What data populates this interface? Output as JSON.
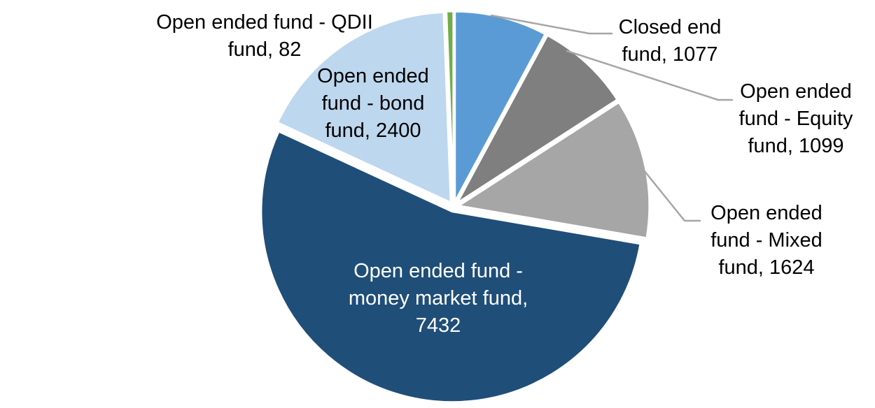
{
  "chart_data": {
    "type": "pie",
    "legend": "none",
    "background": "#FFFFFF",
    "start_angle_deg": 0,
    "direction": "clockwise",
    "total": 13714,
    "slices": [
      {
        "label": "Closed end fund",
        "value": 1077,
        "color": "#5B9BD5",
        "label_lines": [
          "Closed end",
          "fund, 1077"
        ]
      },
      {
        "label": "Open ended fund - Equity fund",
        "value": 1099,
        "color": "#7F7F7F",
        "label_lines": [
          "Open ended",
          "fund - Equity",
          "fund, 1099"
        ]
      },
      {
        "label": "Open ended fund - Mixed fund",
        "value": 1624,
        "color": "#A6A6A6",
        "label_lines": [
          "Open ended",
          "fund - Mixed",
          "fund, 1624"
        ]
      },
      {
        "label": "Open ended fund - money market fund",
        "value": 7432,
        "color": "#1F4E79",
        "label_lines": [
          "Open ended fund -",
          "money market fund,",
          "7432"
        ]
      },
      {
        "label": "Open ended fund - bond fund",
        "value": 2400,
        "color": "#BDD7EE",
        "label_lines": [
          "Open ended",
          "fund - bond",
          "fund, 2400"
        ]
      },
      {
        "label": "Open ended fund - QDII fund",
        "value": 82,
        "color": "#70AD47",
        "label_lines": [
          "Open ended fund - QDII",
          "fund, 82"
        ]
      }
    ],
    "label_colors": {
      "default": "#000000",
      "on_dark_slice": "#FFFFFF"
    },
    "leader_line_color": "#A6A6A6",
    "slice_border_color": "#FFFFFF"
  }
}
